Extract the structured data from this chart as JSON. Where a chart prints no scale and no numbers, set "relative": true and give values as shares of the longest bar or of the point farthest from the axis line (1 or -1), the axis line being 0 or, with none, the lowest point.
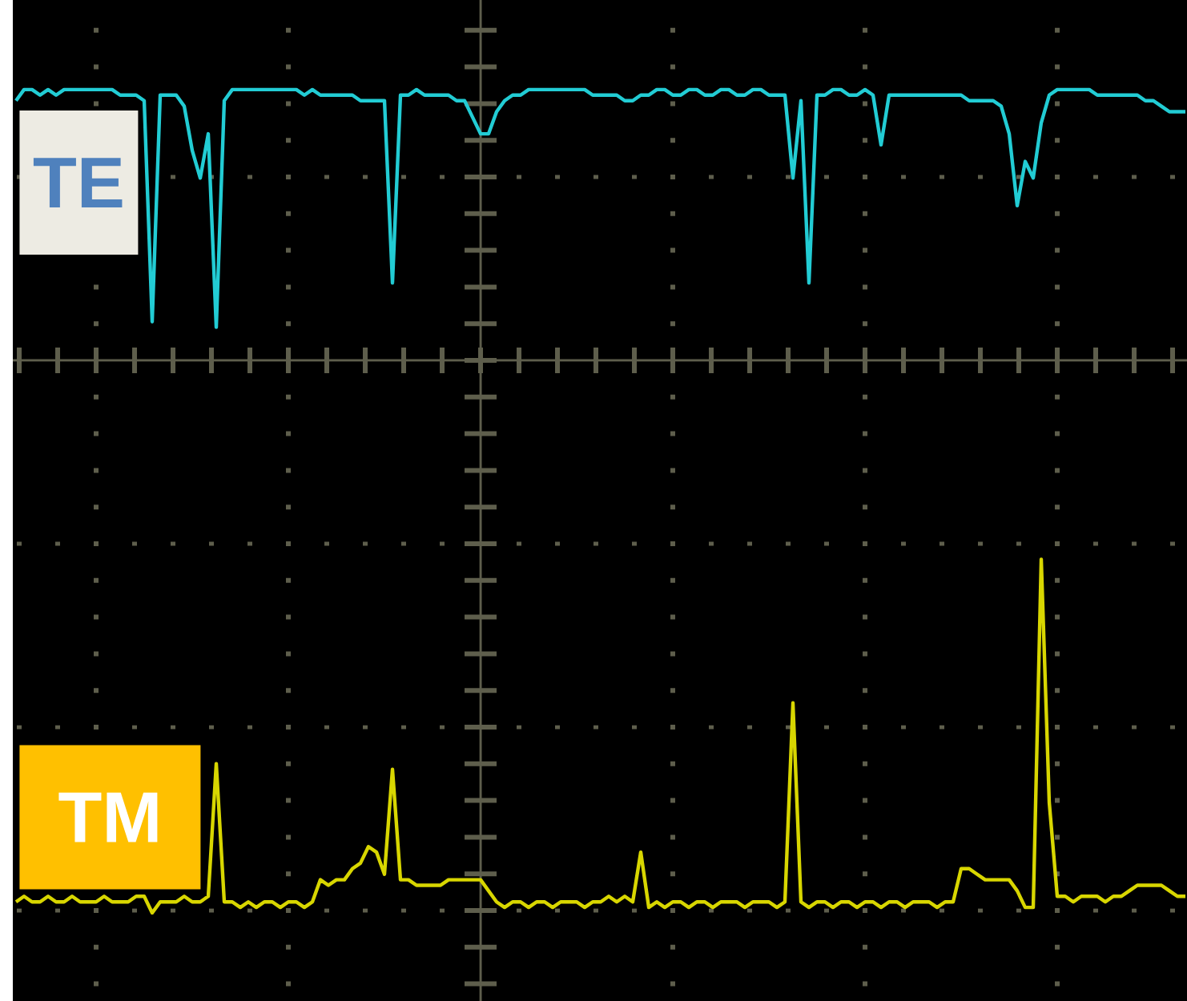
{
  "chart_data": {
    "type": "line",
    "relative": true,
    "grid": true,
    "categories": [
      null,
      null,
      null,
      null,
      null,
      null,
      null,
      null,
      null,
      null,
      null,
      null,
      null,
      null,
      null,
      null,
      null,
      null,
      null,
      null,
      null,
      null,
      null,
      null,
      null,
      null,
      null,
      null,
      null,
      null,
      null,
      null,
      null,
      null,
      null,
      null,
      null,
      null,
      null,
      null,
      null,
      null,
      null,
      null,
      null,
      null,
      null,
      null,
      null,
      null,
      null,
      null,
      null,
      null,
      null,
      null,
      null,
      null,
      null,
      null,
      null,
      null,
      null,
      null,
      null,
      null,
      null,
      null,
      null,
      null,
      null,
      null,
      null,
      null,
      null,
      null,
      null,
      null,
      null,
      null,
      null,
      null,
      null,
      null,
      null,
      null,
      null,
      null,
      null,
      null,
      null,
      null,
      null,
      null,
      null,
      null,
      null,
      null,
      null,
      null,
      null,
      null,
      null,
      null,
      null,
      null,
      null,
      null,
      null,
      null,
      null,
      null,
      null,
      null,
      null,
      null,
      null,
      null,
      null,
      null,
      null,
      null,
      null,
      null,
      null,
      null,
      null,
      null,
      null,
      null,
      null,
      null,
      null,
      null,
      null,
      null,
      null,
      null,
      null,
      null,
      null,
      null,
      null,
      null,
      null,
      null,
      null
    ],
    "series": [
      {
        "name": "TE",
        "color": "#22CCD4",
        "values": [
          0.47,
          0.49,
          0.49,
          0.48,
          0.49,
          0.48,
          0.49,
          0.49,
          0.49,
          0.49,
          0.49,
          0.49,
          0.49,
          0.48,
          0.48,
          0.48,
          0.47,
          0.07,
          0.48,
          0.48,
          0.48,
          0.46,
          0.38,
          0.33,
          0.41,
          0.06,
          0.47,
          0.49,
          0.49,
          0.49,
          0.49,
          0.49,
          0.49,
          0.49,
          0.49,
          0.49,
          0.48,
          0.49,
          0.48,
          0.48,
          0.48,
          0.48,
          0.48,
          0.47,
          0.47,
          0.47,
          0.47,
          0.14,
          0.48,
          0.48,
          0.49,
          0.48,
          0.48,
          0.48,
          0.48,
          0.47,
          0.47,
          0.44,
          0.41,
          0.41,
          0.45,
          0.47,
          0.48,
          0.48,
          0.49,
          0.49,
          0.49,
          0.49,
          0.49,
          0.49,
          0.49,
          0.49,
          0.48,
          0.48,
          0.48,
          0.48,
          0.47,
          0.47,
          0.48,
          0.48,
          0.49,
          0.49,
          0.48,
          0.48,
          0.49,
          0.49,
          0.48,
          0.48,
          0.49,
          0.49,
          0.48,
          0.48,
          0.49,
          0.49,
          0.48,
          0.48,
          0.48,
          0.33,
          0.47,
          0.14,
          0.48,
          0.48,
          0.49,
          0.49,
          0.48,
          0.48,
          0.49,
          0.48,
          0.39,
          0.48,
          0.48,
          0.48,
          0.48,
          0.48,
          0.48,
          0.48,
          0.48,
          0.48,
          0.48,
          0.47,
          0.47,
          0.47,
          0.47,
          0.46,
          0.41,
          0.28,
          0.36,
          0.33,
          0.43,
          0.48,
          0.49,
          0.49,
          0.49,
          0.49,
          0.49,
          0.48,
          0.48,
          0.48,
          0.48,
          0.48,
          0.48,
          0.47,
          0.47,
          0.46,
          0.45,
          0.45,
          0.45
        ]
      },
      {
        "name": "TM",
        "color": "#D8D600",
        "values": [
          -0.98,
          -0.97,
          -0.98,
          -0.98,
          -0.97,
          -0.98,
          -0.98,
          -0.97,
          -0.98,
          -0.98,
          -0.98,
          -0.97,
          -0.98,
          -0.98,
          -0.98,
          -0.97,
          -0.97,
          -1.0,
          -0.98,
          -0.98,
          -0.98,
          -0.97,
          -0.98,
          -0.98,
          -0.97,
          -0.73,
          -0.98,
          -0.98,
          -0.99,
          -0.98,
          -0.99,
          -0.98,
          -0.98,
          -0.99,
          -0.98,
          -0.98,
          -0.99,
          -0.98,
          -0.94,
          -0.95,
          -0.94,
          -0.94,
          -0.92,
          -0.91,
          -0.88,
          -0.89,
          -0.93,
          -0.74,
          -0.94,
          -0.94,
          -0.95,
          -0.95,
          -0.95,
          -0.95,
          -0.94,
          -0.94,
          -0.94,
          -0.94,
          -0.94,
          -0.96,
          -0.98,
          -0.99,
          -0.98,
          -0.98,
          -0.99,
          -0.98,
          -0.98,
          -0.99,
          -0.98,
          -0.98,
          -0.98,
          -0.99,
          -0.98,
          -0.98,
          -0.97,
          -0.98,
          -0.97,
          -0.98,
          -0.89,
          -0.99,
          -0.98,
          -0.99,
          -0.98,
          -0.98,
          -0.99,
          -0.98,
          -0.98,
          -0.99,
          -0.98,
          -0.98,
          -0.98,
          -0.99,
          -0.98,
          -0.98,
          -0.98,
          -0.99,
          -0.98,
          -0.62,
          -0.98,
          -0.99,
          -0.98,
          -0.98,
          -0.99,
          -0.98,
          -0.98,
          -0.99,
          -0.98,
          -0.98,
          -0.99,
          -0.98,
          -0.98,
          -0.99,
          -0.98,
          -0.98,
          -0.98,
          -0.99,
          -0.98,
          -0.98,
          -0.92,
          -0.92,
          -0.93,
          -0.94,
          -0.94,
          -0.94,
          -0.94,
          -0.96,
          -0.99,
          -0.99,
          -0.36,
          -0.8,
          -0.97,
          -0.97,
          -0.98,
          -0.97,
          -0.97,
          -0.97,
          -0.98,
          -0.97,
          -0.97,
          -0.96,
          -0.95,
          -0.95,
          -0.95,
          -0.95,
          -0.96,
          -0.97,
          -0.97
        ]
      }
    ]
  }
}
